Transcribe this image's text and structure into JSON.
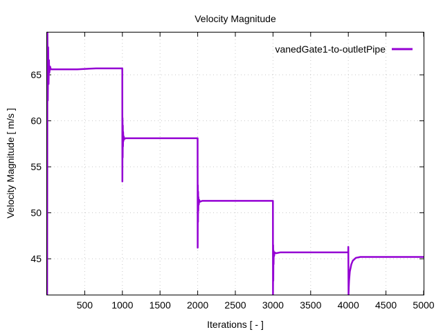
{
  "chart_data": {
    "type": "line",
    "title": "Velocity Magnitude",
    "xlabel": "Iterations [ - ]",
    "ylabel": "Velocity Magnitude [ m/s ]",
    "xlim": [
      0,
      5000
    ],
    "ylim": [
      41.1,
      69.6
    ],
    "xticks": [
      500,
      1000,
      1500,
      2000,
      2500,
      3000,
      3500,
      4000,
      4500,
      5000
    ],
    "yticks": [
      45,
      50,
      55,
      60,
      65
    ],
    "grid": true,
    "legend_position": "top-right",
    "series": [
      {
        "name": "vanedGate1-to-outletPipe",
        "color": "#9400d3",
        "x": [
          1,
          5,
          10,
          15,
          20,
          25,
          30,
          40,
          50,
          70,
          100,
          200,
          400,
          650,
          999,
          1000,
          1002,
          1004,
          1006,
          1008,
          1010,
          1014,
          1018,
          1025,
          1040,
          1070,
          1150,
          1400,
          1999,
          2000,
          2002,
          2004,
          2006,
          2008,
          2010,
          2015,
          2020,
          2030,
          2060,
          2150,
          2500,
          2999,
          3000,
          3002,
          3004,
          3006,
          3008,
          3010,
          3015,
          3020,
          3040,
          3100,
          3300,
          3999,
          4000,
          4003,
          4006,
          4010,
          4020,
          4040,
          4060,
          4100,
          4160,
          4250,
          4500,
          5000
        ],
        "values": [
          41.1,
          69.6,
          62.2,
          68.0,
          64.0,
          66.6,
          65.2,
          65.9,
          65.6,
          65.6,
          65.6,
          65.6,
          65.6,
          65.7,
          65.7,
          53.4,
          60.3,
          56.0,
          59.5,
          57.2,
          58.8,
          57.8,
          58.3,
          58.0,
          58.1,
          58.1,
          58.1,
          58.1,
          58.1,
          46.2,
          53.0,
          49.0,
          52.3,
          50.2,
          51.7,
          50.9,
          51.4,
          51.2,
          51.3,
          51.3,
          51.3,
          51.3,
          41.1,
          46.5,
          42.6,
          45.9,
          44.4,
          45.8,
          45.3,
          45.7,
          45.6,
          45.7,
          45.7,
          45.7,
          46.3,
          41.1,
          41.9,
          42.6,
          43.6,
          44.4,
          44.8,
          45.1,
          45.2,
          45.2,
          45.2,
          45.2
        ]
      }
    ]
  }
}
